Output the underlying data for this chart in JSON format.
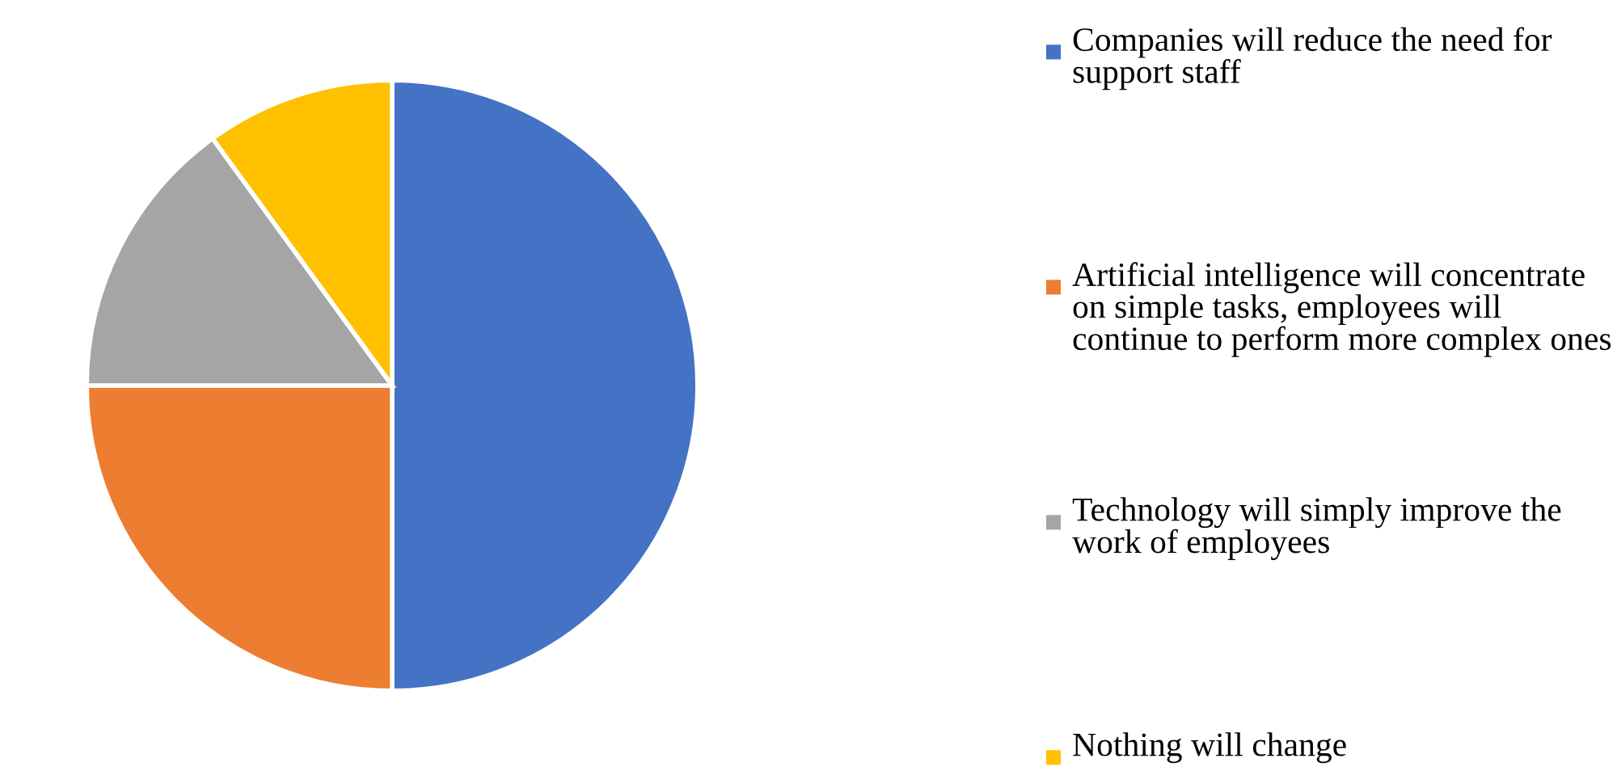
{
  "chart_data": {
    "type": "pie",
    "categories": [
      "Companies will reduce the need for support staff",
      "Artificial intelligence will concentrate on simple tasks, employees will continue to perform more complex ones",
      "Technology will simply improve the work of employees",
      "Nothing will change"
    ],
    "values": [
      50,
      25,
      15,
      10
    ],
    "colors": [
      "#4472c4",
      "#ed7d31",
      "#a5a5a5",
      "#ffc000"
    ],
    "legend": "right"
  }
}
